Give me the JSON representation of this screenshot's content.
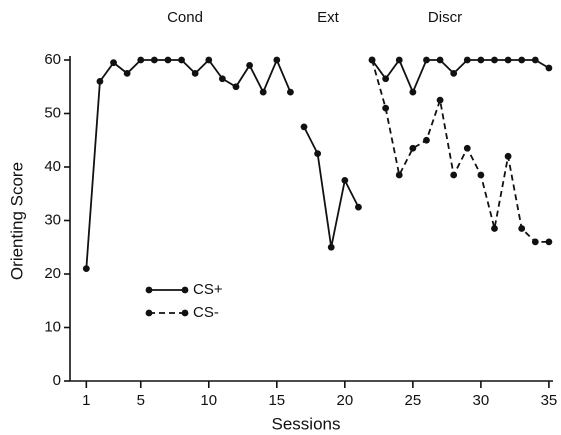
{
  "chart_data": {
    "type": "line",
    "xlabel": "Sessions",
    "ylabel": "Orienting Score",
    "annotations": [
      "Cond",
      "Ext",
      "Discr"
    ],
    "x": [
      1,
      2,
      3,
      4,
      5,
      6,
      7,
      8,
      9,
      10,
      11,
      12,
      13,
      14,
      15,
      16,
      null,
      17,
      18,
      19,
      20,
      21,
      null,
      22,
      23,
      24,
      25,
      26,
      27,
      28,
      29,
      30,
      31,
      32,
      33,
      34,
      35
    ],
    "series": [
      {
        "name": "CS+",
        "color": "#111111",
        "dash": false,
        "values": [
          21,
          56,
          59.5,
          57.5,
          60,
          60,
          60,
          60,
          57.5,
          60,
          56.5,
          55,
          59,
          54,
          60,
          54,
          null,
          47.5,
          42.5,
          25,
          37.5,
          32.5,
          null,
          60,
          56.5,
          60,
          54,
          60,
          60,
          57.5,
          60,
          60,
          60,
          60,
          60,
          60,
          58.5
        ]
      },
      {
        "name": "CS-",
        "color": "#111111",
        "dash": true,
        "values": [
          null,
          null,
          null,
          null,
          null,
          null,
          null,
          null,
          null,
          null,
          null,
          null,
          null,
          null,
          null,
          null,
          null,
          null,
          null,
          null,
          null,
          null,
          null,
          60,
          51,
          38.5,
          43.5,
          45,
          52.5,
          38.5,
          43.5,
          38.5,
          28.5,
          42,
          28.5,
          26,
          26
        ]
      }
    ],
    "xlim": [
      -0.2,
      35.3
    ],
    "xticks": [
      1,
      5,
      10,
      15,
      20,
      25,
      30,
      35
    ],
    "ylim": [
      0,
      60
    ],
    "yticks": [
      0,
      10,
      20,
      30,
      40,
      50,
      60
    ],
    "grid": false
  }
}
